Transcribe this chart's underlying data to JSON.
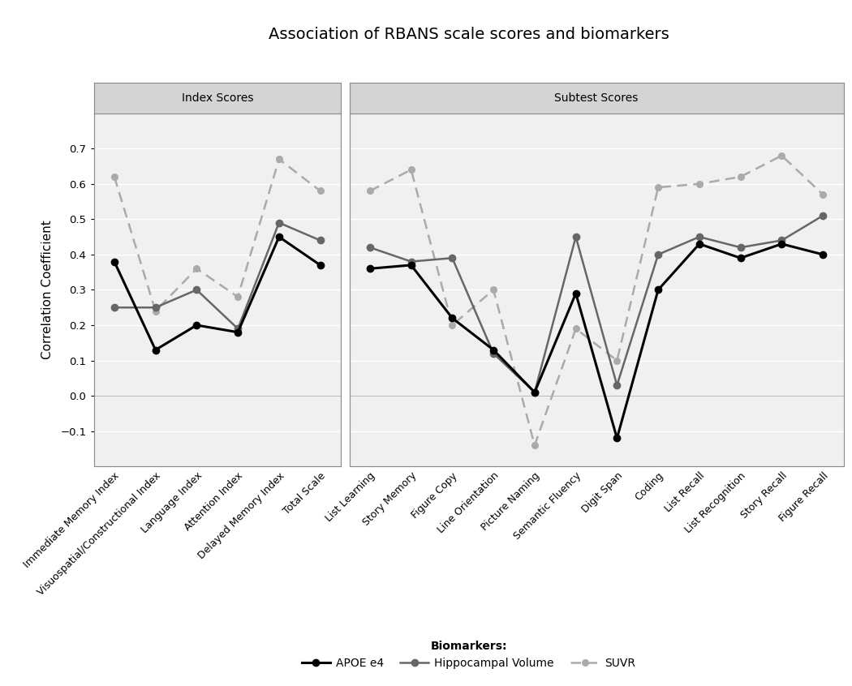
{
  "title": "Association of RBANS scale scores and biomarkers",
  "ylabel": "Correlation Coefficient",
  "index_labels": [
    "Immediate Memory Index",
    "Visuospatial/Constructional Index",
    "Language Index",
    "Attention Index",
    "Delayed Memory Index",
    "Total Scale"
  ],
  "subtest_labels": [
    "List Learning",
    "Story Memory",
    "Figure Copy",
    "Line Orientation",
    "Picture Naming",
    "Semantic Fluency",
    "Digit Span",
    "Coding",
    "List Recall",
    "List Recognition",
    "Story Recall",
    "Figure Recall"
  ],
  "panel_titles": [
    "Index Scores",
    "Subtest Scores"
  ],
  "apoe_index": [
    0.38,
    0.13,
    0.2,
    0.18,
    0.45,
    0.37
  ],
  "hippo_index": [
    0.25,
    0.25,
    0.3,
    0.19,
    0.49,
    0.44
  ],
  "suvr_index": [
    0.62,
    0.24,
    0.36,
    0.28,
    0.67,
    0.58
  ],
  "apoe_subtest": [
    0.36,
    0.37,
    0.22,
    0.13,
    0.01,
    0.29,
    -0.12,
    0.3,
    0.43,
    0.39,
    0.43,
    0.4
  ],
  "hippo_subtest": [
    0.42,
    0.38,
    0.39,
    0.12,
    0.01,
    0.45,
    0.03,
    0.4,
    0.45,
    0.42,
    0.44,
    0.51
  ],
  "suvr_subtest": [
    0.58,
    0.64,
    0.2,
    0.3,
    -0.14,
    0.19,
    0.1,
    0.59,
    0.6,
    0.62,
    0.68,
    0.57
  ],
  "apoe_color": "#000000",
  "hippo_color": "#666666",
  "suvr_color": "#aaaaaa",
  "ylim": [
    -0.2,
    0.8
  ],
  "yticks": [
    -0.1,
    0.0,
    0.1,
    0.2,
    0.3,
    0.4,
    0.5,
    0.6,
    0.7
  ],
  "plot_bg": "#f0f0f0",
  "grid_color": "#ffffff",
  "header_bg": "#d4d4d4",
  "border_color": "#333333"
}
